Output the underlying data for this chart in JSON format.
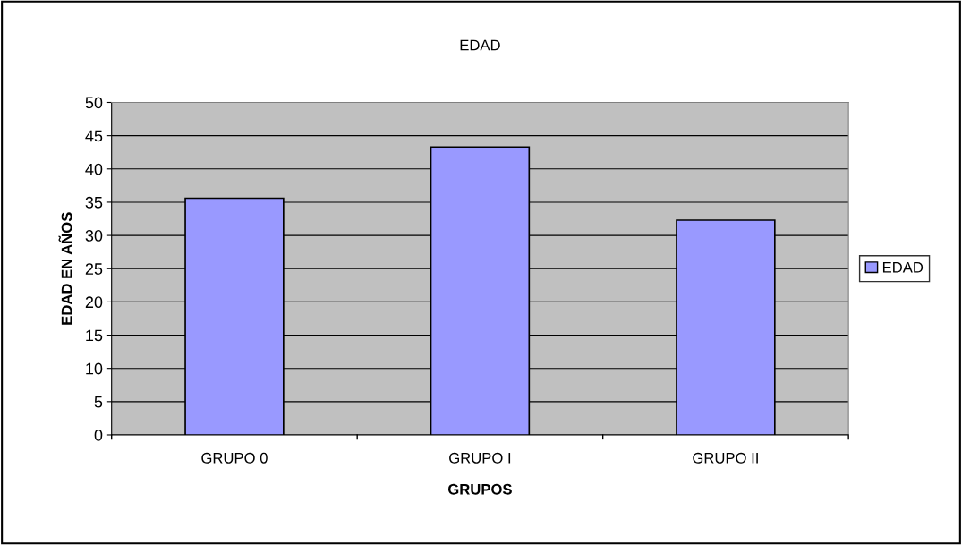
{
  "chart_data": {
    "type": "bar",
    "title": "EDAD",
    "xlabel": "GRUPOS",
    "ylabel": "EDAD EN AÑOS",
    "categories": [
      "GRUPO 0",
      "GRUPO I",
      "GRUPO II"
    ],
    "series": [
      {
        "name": "EDAD",
        "color": "#9999ff",
        "values": [
          35.6,
          43.3,
          32.3
        ]
      }
    ],
    "ylim": [
      0,
      50
    ],
    "yticks": [
      0,
      5,
      10,
      15,
      20,
      25,
      30,
      35,
      40,
      45,
      50
    ],
    "grid": "y",
    "legend": "right"
  }
}
